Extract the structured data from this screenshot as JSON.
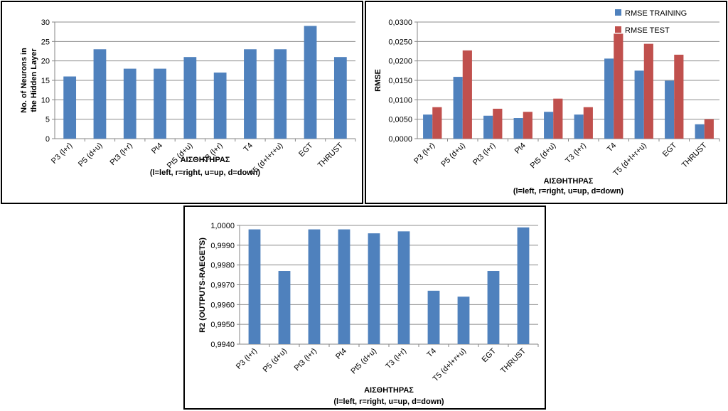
{
  "chart_data": [
    {
      "type": "bar",
      "categories": [
        "P3 (l+r)",
        "P5 (d+u)",
        "Pt3 (l+r)",
        "Pt4",
        "Pt5 (d+u)",
        "T3 (l+r)",
        "T4",
        "T5 (d+l+r+u)",
        "EGT",
        "THRUST"
      ],
      "series": [
        {
          "values": [
            16,
            23,
            18,
            18,
            21,
            17,
            23,
            23,
            29,
            21
          ],
          "color": "#4F81BD"
        }
      ],
      "ylabel_lines": [
        "No. of Neurons in",
        "the Hidden Layer"
      ],
      "xlabel_lines": [
        "ΑΙΣΘΗΤΗΡΑΣ",
        "(l=left, r=right, u=up, d=down)"
      ],
      "ylim": [
        0,
        30
      ],
      "yticks": [
        "0",
        "5",
        "10",
        "15",
        "20",
        "25",
        "30"
      ],
      "grid": true,
      "legend": "none"
    },
    {
      "type": "bar",
      "categories": [
        "P3 (l+r)",
        "P5 (d+u)",
        "Pt3 (l+r)",
        "Pt4",
        "Pt5 (d+u)",
        "T3 (l+r)",
        "T4",
        "T5 (d+l+r+u)",
        "EGT",
        "THRUST"
      ],
      "series": [
        {
          "name": "RMSE TRAINING",
          "values": [
            0.0062,
            0.0159,
            0.0059,
            0.0053,
            0.0069,
            0.0062,
            0.0206,
            0.0175,
            0.0149,
            0.0037
          ],
          "color": "#4F81BD"
        },
        {
          "name": "RMSE TEST",
          "values": [
            0.0081,
            0.0227,
            0.0077,
            0.0069,
            0.0103,
            0.0081,
            0.027,
            0.0244,
            0.0216,
            0.005
          ],
          "color": "#C0504D"
        }
      ],
      "ylabel_lines": [
        "RMSE"
      ],
      "xlabel_lines": [
        "ΑΙΣΘΗΤΗΡΑΣ",
        "(l=left, r=right, u=up, d=down)"
      ],
      "ylim": [
        0,
        0.03
      ],
      "yticks": [
        "0,0000",
        "0,0050",
        "0,0100",
        "0,0150",
        "0,0200",
        "0,0250",
        "0,0300"
      ],
      "grid": true,
      "legend": "top-right"
    },
    {
      "type": "bar",
      "categories": [
        "P3 (l+r)",
        "P5 (d+u)",
        "Pt3 (l+r)",
        "Pt4",
        "Pt5 (d+u)",
        "T3 (l+r)",
        "T4",
        "T5 (d+l+r+u)",
        "EGT",
        "THRUST"
      ],
      "series": [
        {
          "values": [
            0.9998,
            0.9977,
            0.9998,
            0.9998,
            0.9996,
            0.9997,
            0.9967,
            0.9964,
            0.9977,
            0.9999
          ],
          "color": "#4F81BD"
        }
      ],
      "ylabel_lines": [
        "R2 (OUTPUTS-RAEGETS)"
      ],
      "xlabel_lines": [
        "ΑΙΣΘΗΤΗΡΑΣ",
        "(l=left, r=right, u=up, d=down)"
      ],
      "ylim": [
        0.994,
        1.0
      ],
      "yticks": [
        "0,9940",
        "0,9950",
        "0,9960",
        "0,9970",
        "0,9980",
        "0,9990",
        "1,0000"
      ],
      "grid": true,
      "legend": "none"
    }
  ]
}
